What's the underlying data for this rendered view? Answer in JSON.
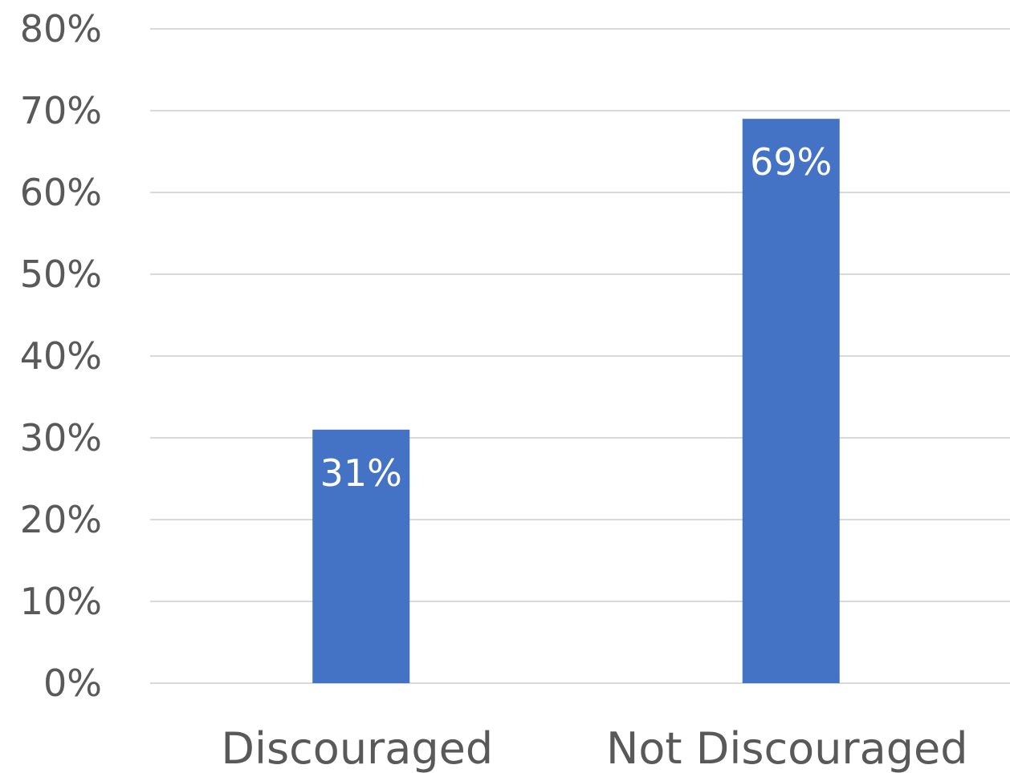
{
  "chart_data": {
    "type": "bar",
    "categories": [
      "Discouraged",
      "Not Discouraged"
    ],
    "values": [
      31,
      69
    ],
    "data_labels": [
      "31%",
      "69%"
    ],
    "ylim": [
      0,
      80
    ],
    "y_ticks": [
      0,
      10,
      20,
      30,
      40,
      50,
      60,
      70,
      80
    ],
    "y_tick_labels": [
      "0%",
      "10%",
      "20%",
      "30%",
      "40%",
      "50%",
      "60%",
      "70%",
      "80%"
    ],
    "grid": true,
    "legend": "none",
    "colors": {
      "bar": "#4472c4",
      "grid": "#d9d9d9",
      "text": "#595959",
      "data_label": "#ffffff"
    }
  }
}
